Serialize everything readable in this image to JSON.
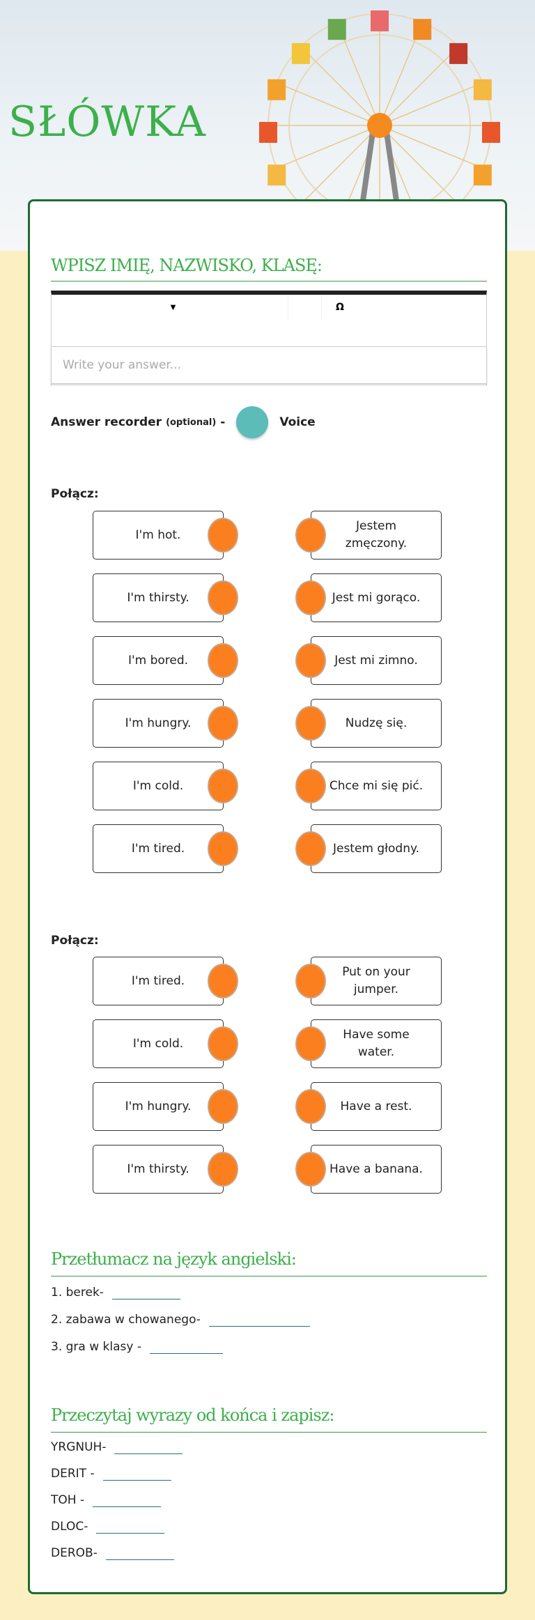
{
  "title": "SŁÓWKA",
  "name_section": {
    "heading": "WPISZ IMIĘ, NAZWISKO, KLASĘ:",
    "toolbar_omega": "Ω",
    "placeholder": "Write your answer...",
    "recorder_label": "Answer recorder",
    "recorder_optional": "(optional)",
    "recorder_dash": "-",
    "recorder_voice": "Voice"
  },
  "match1": {
    "label": "Połącz:",
    "left": [
      "I'm hot.",
      "I'm thirsty.",
      "I'm bored.",
      "I'm hungry.",
      "I'm cold.",
      "I'm tired."
    ],
    "right": [
      "Jestem zmęczony.",
      "Jest mi gorąco.",
      "Jest mi zimno.",
      "Nudzę się.",
      "Chce mi się pić.",
      "Jestem głodny."
    ]
  },
  "match2": {
    "label": "Połącz:",
    "left": [
      "I'm tired.",
      "I'm cold.",
      "I'm hungry.",
      "I'm thirsty."
    ],
    "right": [
      "Put on your jumper.",
      "Have some water.",
      "Have a rest.",
      "Have a banana."
    ]
  },
  "translate": {
    "heading": "Przetłumacz na język angielski:",
    "items": [
      "1. berek-",
      "2. zabawa w chowanego-",
      "3. gra w klasy -"
    ]
  },
  "reverse": {
    "heading": "Przeczytaj wyrazy od końca i zapisz:",
    "items": [
      "YRGNUH-",
      "DERIT -",
      "TOH -",
      "DLOC-",
      "DEROB-"
    ]
  },
  "colors": {
    "accent": "#3cb04a",
    "border": "#1d6b2e",
    "connector": "#fb7f1f",
    "recorder": "#5bbcb8",
    "background": "#fcefc2"
  }
}
